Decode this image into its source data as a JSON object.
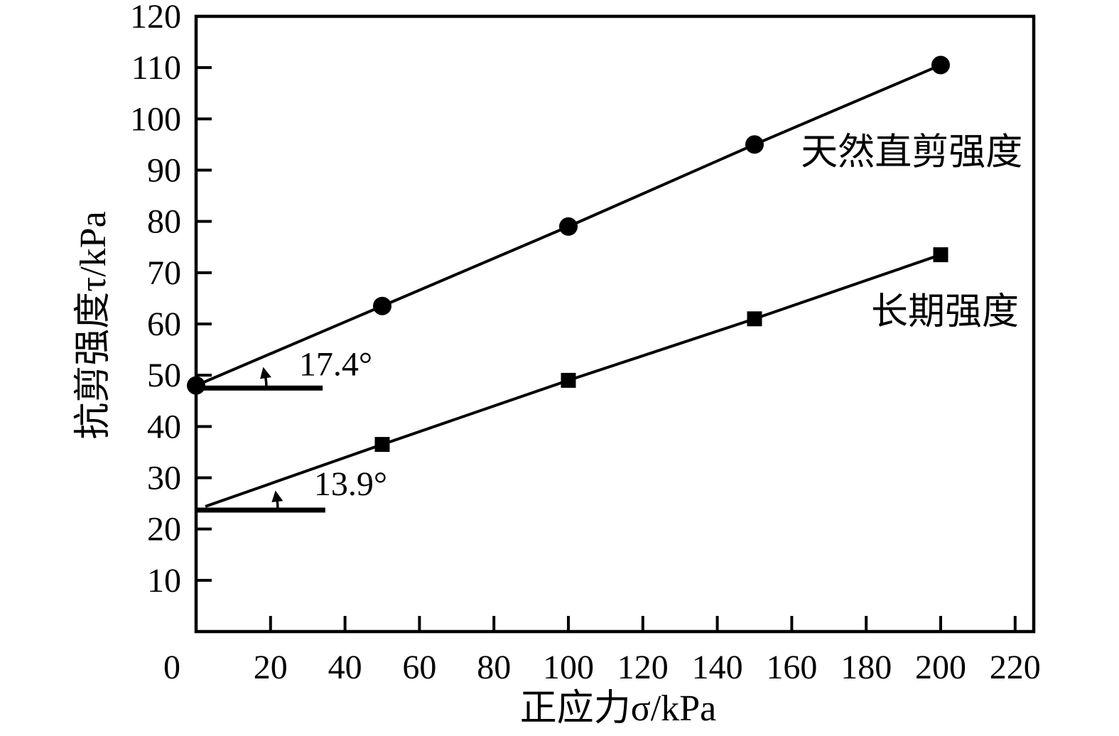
{
  "figure": {
    "background": "#ffffff",
    "ink_color": "#000000",
    "title": ""
  },
  "chart_data": {
    "type": "line",
    "title": "",
    "xlabel": "正应力σ/kPa",
    "ylabel": "抗剪强度τ/kPa",
    "xlim": [
      0,
      225
    ],
    "ylim": [
      0,
      120
    ],
    "x_ticks": [
      0,
      20,
      40,
      60,
      80,
      100,
      120,
      140,
      160,
      180,
      200,
      220
    ],
    "y_ticks": [
      10,
      20,
      30,
      40,
      50,
      60,
      70,
      80,
      90,
      100,
      110,
      120
    ],
    "grid": false,
    "legend_position": "inline-labels",
    "series": [
      {
        "name": "天然直剪强度",
        "marker": "circle",
        "color": "#000000",
        "points": [
          [
            0,
            48
          ],
          [
            50,
            63.5
          ],
          [
            100,
            79
          ],
          [
            150,
            95
          ],
          [
            200,
            110.5
          ]
        ],
        "friction_angle_deg": 17.4,
        "cohesion_kPa": 48,
        "label_anchor": {
          "x": 222,
          "y": 93.6,
          "align": "end"
        }
      },
      {
        "name": "长期强度",
        "marker": "square",
        "color": "#000000",
        "line_start": [
          2.5,
          24.4
        ],
        "points": [
          [
            50,
            36.5
          ],
          [
            100,
            49
          ],
          [
            150,
            61
          ],
          [
            200,
            73.5
          ]
        ],
        "friction_angle_deg": 13.9,
        "cohesion_kPa": 24,
        "label_anchor": {
          "x": 221,
          "y": 62.5,
          "align": "end"
        }
      }
    ],
    "angle_annotations": [
      {
        "text": "17.4°",
        "angle_deg": 17.4,
        "vertex": [
          0,
          47.5
        ],
        "baseline_end_x": 34,
        "arc_radius_px": 99,
        "label": {
          "x": 37.5,
          "y": 52.2
        }
      },
      {
        "text": "13.9°",
        "angle_deg": 13.9,
        "vertex": [
          0,
          23.7
        ],
        "baseline_end_x": 34.7,
        "arc_radius_px": 115,
        "label": {
          "x": 41.5,
          "y": 28.8
        }
      }
    ]
  }
}
